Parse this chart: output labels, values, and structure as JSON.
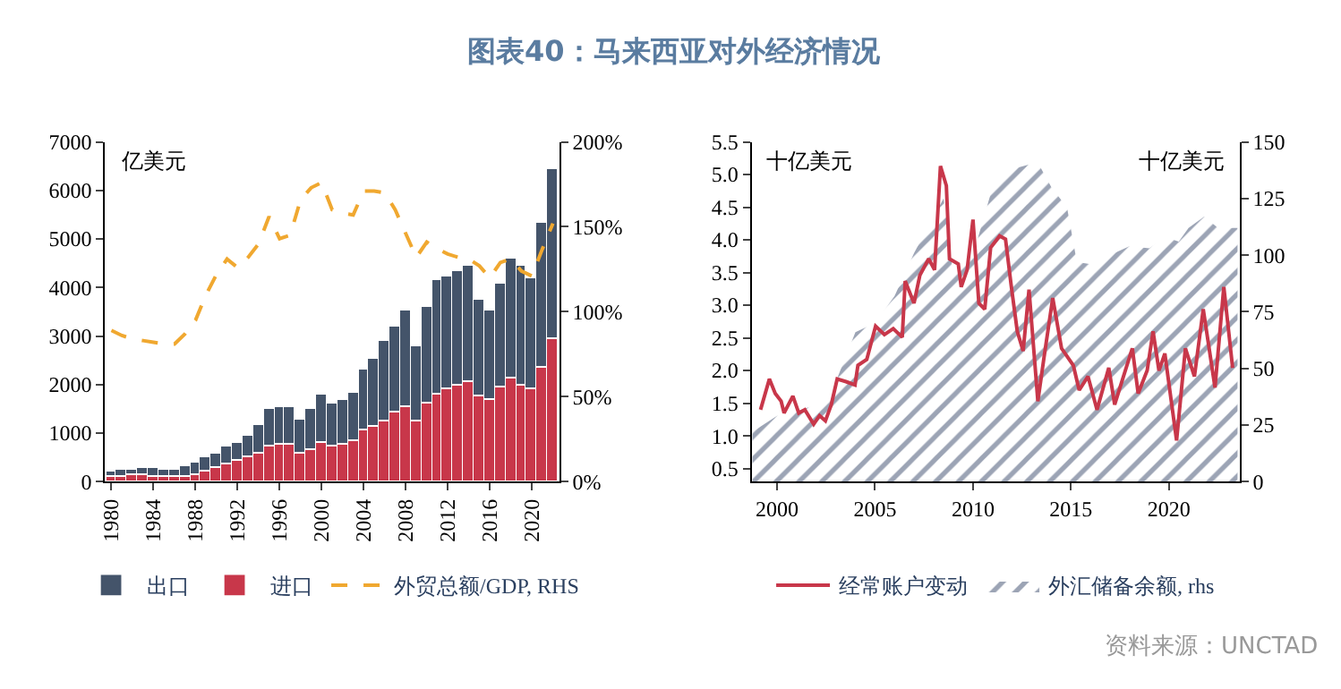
{
  "chart_data": [
    {
      "type": "bar",
      "title": "图表40：马来西亚对外经济情况",
      "ylabel": "亿美元",
      "stacked": true,
      "legend": "bottom",
      "marker": "none",
      "x": [
        1980,
        1981,
        1982,
        1983,
        1984,
        1985,
        1986,
        1987,
        1988,
        1989,
        1990,
        1991,
        1992,
        1993,
        1994,
        1995,
        1996,
        1997,
        1998,
        1999,
        2000,
        2001,
        2002,
        2003,
        2004,
        2005,
        2006,
        2007,
        2008,
        2009,
        2010,
        2011,
        2012,
        2013,
        2014,
        2015,
        2016,
        2017,
        2018,
        2019,
        2020,
        2021,
        2022
      ],
      "xlim": [
        1979.4,
        2022.6
      ],
      "xticks": [
        1980,
        1984,
        1988,
        1992,
        1996,
        2000,
        2004,
        2008,
        2012,
        2016,
        2020
      ],
      "ylim": [
        0,
        7000
      ],
      "yticks": [
        0,
        1000,
        2000,
        3000,
        4000,
        5000,
        6000,
        7000
      ],
      "y2lim": [
        0,
        200
      ],
      "y2ticks": [
        {
          "value": 0,
          "label": "0%"
        },
        {
          "value": 50,
          "label": "50%"
        },
        {
          "value": 100,
          "label": "100%"
        },
        {
          "value": 150,
          "label": "150%"
        },
        {
          "value": 200,
          "label": "200%"
        }
      ],
      "series": [
        {
          "name": "进口",
          "color": "#c8374a",
          "values": [
            110,
            120,
            130,
            130,
            120,
            110,
            100,
            110,
            160,
            220,
            300,
            380,
            420,
            500,
            600,
            750,
            780,
            780,
            580,
            650,
            800,
            750,
            780,
            850,
            1050,
            1150,
            1250,
            1450,
            1550,
            1250,
            1600,
            1800,
            1900,
            2000,
            2050,
            1750,
            1700,
            1950,
            2150,
            2000,
            1900,
            2350,
            2950
          ]
        },
        {
          "name": "出口",
          "color": "#44546a",
          "values": [
            120,
            120,
            130,
            150,
            160,
            160,
            170,
            210,
            240,
            280,
            300,
            340,
            380,
            450,
            580,
            750,
            770,
            780,
            700,
            850,
            1000,
            850,
            920,
            1000,
            1250,
            1400,
            1650,
            1750,
            2000,
            1550,
            2000,
            2350,
            2350,
            2350,
            2400,
            2000,
            1850,
            2150,
            2450,
            2450,
            2300,
            3000,
            3500
          ]
        },
        {
          "name": "外贸总额/GDP, RHS",
          "type": "line",
          "axis": "y2",
          "line_style": "dashed",
          "color": "#f0a830",
          "values": [
            89,
            86,
            84,
            83,
            82,
            81,
            81,
            87,
            95,
            110,
            122,
            131,
            126,
            132,
            140,
            156,
            143,
            145,
            166,
            173,
            176,
            160,
            158,
            157,
            171,
            171,
            170,
            160,
            146,
            132,
            141,
            137,
            134,
            132,
            131,
            127,
            120,
            129,
            131,
            124,
            121,
            137,
            152
          ]
        }
      ]
    },
    {
      "type": "line",
      "ylabel": "十亿美元",
      "y2label": "十亿美元",
      "legend": "bottom",
      "marker": "none",
      "xlim": [
        1998.7,
        2023.6
      ],
      "xticks": [
        2000,
        2005,
        2010,
        2015,
        2020
      ],
      "ylim": [
        0.3,
        5.5
      ],
      "yticks": [
        0.5,
        {
          "value": 1,
          "label": "1.0"
        },
        1.5,
        {
          "value": 2,
          "label": "2.0"
        },
        2.5,
        {
          "value": 3,
          "label": "3.0"
        },
        3.5,
        {
          "value": 4,
          "label": "4.0"
        },
        4.5,
        {
          "value": 5,
          "label": "5.0"
        },
        5.5
      ],
      "y2lim": [
        0,
        150
      ],
      "y2ticks": [
        0,
        25,
        50,
        75,
        100,
        125,
        150
      ],
      "annotations": [
        "资料来源：UNCTAD"
      ],
      "series": [
        {
          "name": "经常账户变动",
          "color": "#c8374a",
          "line_style": "solid",
          "x": [
            1999.16,
            1999.61,
            1999.91,
            2000.21,
            2000.36,
            2000.81,
            2001.11,
            2001.42,
            2001.87,
            2002.17,
            2002.47,
            2002.77,
            2003.07,
            2003.52,
            2003.98,
            2004.13,
            2004.58,
            2005.03,
            2005.48,
            2005.93,
            2006.39,
            2006.54,
            2006.99,
            2007.29,
            2007.74,
            2008.04,
            2008.34,
            2008.64,
            2008.8,
            2009.25,
            2009.4,
            2009.7,
            2010.0,
            2010.3,
            2010.6,
            2010.9,
            2011.36,
            2011.66,
            2011.96,
            2012.26,
            2012.56,
            2012.86,
            2013.31,
            2013.61,
            2014.07,
            2014.52,
            2015.12,
            2015.42,
            2015.87,
            2016.33,
            2016.93,
            2017.23,
            2017.68,
            2018.13,
            2018.43,
            2018.89,
            2019.19,
            2019.49,
            2019.79,
            2020.39,
            2020.84,
            2021.3,
            2021.75,
            2022.35,
            2022.8,
            2023.25
          ],
          "values": [
            1.4,
            1.87,
            1.65,
            1.53,
            1.35,
            1.61,
            1.35,
            1.4,
            1.18,
            1.31,
            1.23,
            1.48,
            1.87,
            1.83,
            1.78,
            2.08,
            2.17,
            2.68,
            2.55,
            2.64,
            2.51,
            3.37,
            3.03,
            3.46,
            3.71,
            3.54,
            5.13,
            4.83,
            3.71,
            3.63,
            3.28,
            3.54,
            4.31,
            3.03,
            2.94,
            3.88,
            4.06,
            4.01,
            3.28,
            2.6,
            2.3,
            3.24,
            1.53,
            2.17,
            3.11,
            2.34,
            2.08,
            1.7,
            1.91,
            1.4,
            2.04,
            1.48,
            1.91,
            2.34,
            1.65,
            2.0,
            2.6,
            2.0,
            2.26,
            0.93,
            2.34,
            1.91,
            2.94,
            1.74,
            3.28,
            2.04
          ]
        },
        {
          "name": "外汇储备余额, rhs",
          "type": "area",
          "axis": "y2",
          "color": "#3a4a6b",
          "x": [
            1998.75,
            2000,
            2001,
            2002,
            2003,
            2004,
            2005,
            2006,
            2007,
            2008.5,
            2009,
            2010,
            2011,
            2012,
            2013.3,
            2014,
            2014.8,
            2015.3,
            2016,
            2017,
            2018,
            2019,
            2019.8,
            2020.5,
            2021,
            2021.8,
            2022.5,
            2023.5
          ],
          "values": [
            22,
            29,
            31,
            34,
            44,
            66,
            70,
            82,
            101,
            125,
            91,
            100,
            130,
            138,
            141,
            130,
            121,
            97,
            96,
            100,
            104,
            103,
            108,
            106,
            112,
            117,
            112,
            112
          ]
        }
      ]
    }
  ]
}
